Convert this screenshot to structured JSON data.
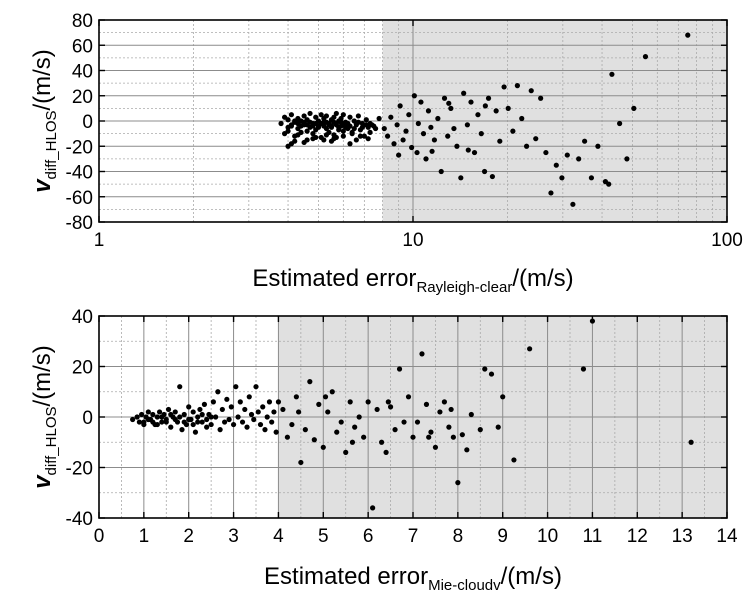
{
  "chart_data": [
    {
      "type": "scatter",
      "xscale": "log",
      "xlim": [
        1,
        100
      ],
      "ylim": [
        -80,
        80
      ],
      "x_ticks": [
        1,
        10,
        100
      ],
      "y_ticks": [
        -80,
        -60,
        -40,
        -20,
        0,
        20,
        40,
        60,
        80
      ],
      "tick_labels_x": [
        "1",
        "10",
        "100"
      ],
      "tick_labels_y": [
        "-80",
        "-60",
        "-40",
        "-20",
        "0",
        "20",
        "40",
        "60",
        "80"
      ],
      "xlabel_main": "Estimated error",
      "xlabel_sub": "Rayleigh-clear",
      "xlabel_unit": "/(m/s)",
      "ylabel_main": "v",
      "ylabel_sub": "diff_HLOS",
      "ylabel_unit": "/(m/s)",
      "shaded_region_x": [
        8,
        100
      ],
      "grid": true,
      "marker_color": "#000000",
      "shade_color": "#e0e0e0",
      "points": [
        [
          3.8,
          -2
        ],
        [
          3.9,
          3
        ],
        [
          4.0,
          -8
        ],
        [
          4.0,
          1
        ],
        [
          4.1,
          -4
        ],
        [
          4.1,
          5
        ],
        [
          4.2,
          -12
        ],
        [
          4.2,
          -1
        ],
        [
          4.3,
          2
        ],
        [
          4.3,
          -6
        ],
        [
          4.4,
          0
        ],
        [
          4.4,
          -9
        ],
        [
          4.5,
          4
        ],
        [
          4.5,
          -3
        ],
        [
          4.6,
          -15
        ],
        [
          4.6,
          1
        ],
        [
          4.7,
          -5
        ],
        [
          4.7,
          6
        ],
        [
          4.8,
          -2
        ],
        [
          4.8,
          -10
        ],
        [
          4.9,
          3
        ],
        [
          4.9,
          -7
        ],
        [
          5.0,
          0
        ],
        [
          5.0,
          -4
        ],
        [
          5.1,
          5
        ],
        [
          5.1,
          -13
        ],
        [
          5.2,
          -1
        ],
        [
          5.2,
          2
        ],
        [
          5.3,
          -6
        ],
        [
          5.3,
          4
        ],
        [
          5.4,
          -3
        ],
        [
          5.4,
          -9
        ],
        [
          5.5,
          1
        ],
        [
          5.5,
          -5
        ],
        [
          5.6,
          3
        ],
        [
          5.6,
          -11
        ],
        [
          5.7,
          -2
        ],
        [
          5.7,
          6
        ],
        [
          5.8,
          -7
        ],
        [
          5.8,
          0
        ],
        [
          5.9,
          -4
        ],
        [
          5.9,
          2
        ],
        [
          6.0,
          -8
        ],
        [
          6.0,
          5
        ],
        [
          6.1,
          -1
        ],
        [
          6.2,
          -6
        ],
        [
          6.3,
          3
        ],
        [
          6.4,
          -10
        ],
        [
          6.5,
          0
        ],
        [
          6.6,
          -3
        ],
        [
          6.7,
          4
        ],
        [
          6.8,
          -7
        ],
        [
          6.9,
          -2
        ],
        [
          7.0,
          -12
        ],
        [
          7.1,
          1
        ],
        [
          7.2,
          -5
        ],
        [
          7.3,
          -9
        ],
        [
          7.4,
          -3
        ],
        [
          7.6,
          -6
        ],
        [
          7.8,
          2
        ],
        [
          4.0,
          -20
        ],
        [
          4.1,
          -18
        ],
        [
          4.2,
          -16
        ],
        [
          4.5,
          -17
        ],
        [
          4.8,
          -14
        ],
        [
          5.2,
          -15
        ],
        [
          5.5,
          -16
        ],
        [
          5.7,
          -13
        ],
        [
          6.3,
          -18
        ],
        [
          6.6,
          -15
        ],
        [
          6.8,
          -12
        ],
        [
          7.2,
          -14
        ],
        [
          3.9,
          -10
        ],
        [
          4.3,
          -11
        ],
        [
          4.6,
          -8
        ],
        [
          4.9,
          -13
        ],
        [
          5.3,
          -11
        ],
        [
          5.6,
          -14
        ],
        [
          6.0,
          -12
        ],
        [
          6.4,
          -9
        ],
        [
          4.0,
          -5
        ],
        [
          4.1,
          -3
        ],
        [
          4.2,
          0
        ],
        [
          4.3,
          -2
        ],
        [
          4.4,
          -4
        ],
        [
          4.5,
          -1
        ],
        [
          4.6,
          -3
        ],
        [
          4.7,
          -1
        ],
        [
          4.8,
          -4
        ],
        [
          4.9,
          -2
        ],
        [
          5.0,
          -5
        ],
        [
          5.1,
          -2
        ],
        [
          5.2,
          -4
        ],
        [
          5.3,
          -1
        ],
        [
          5.4,
          -2
        ],
        [
          5.5,
          -4
        ],
        [
          5.6,
          -1
        ],
        [
          5.7,
          -3
        ],
        [
          5.8,
          -5
        ],
        [
          5.9,
          -1
        ],
        [
          6.0,
          -3
        ],
        [
          6.1,
          -5
        ],
        [
          6.2,
          -2
        ],
        [
          6.3,
          -4
        ],
        [
          6.5,
          -6
        ],
        [
          6.7,
          -1
        ],
        [
          6.9,
          -5
        ],
        [
          7.1,
          -3
        ],
        [
          7.3,
          -2
        ],
        [
          7.5,
          -4
        ],
        [
          8.1,
          -6
        ],
        [
          8.3,
          -12
        ],
        [
          8.5,
          3
        ],
        [
          8.7,
          -18
        ],
        [
          8.9,
          -3
        ],
        [
          9.1,
          12
        ],
        [
          9.3,
          -15
        ],
        [
          9.5,
          -8
        ],
        [
          9.7,
          5
        ],
        [
          9.9,
          -21
        ],
        [
          10.1,
          20
        ],
        [
          10.3,
          -25
        ],
        [
          10.4,
          -2
        ],
        [
          10.6,
          15
        ],
        [
          10.8,
          -10
        ],
        [
          11.0,
          -30
        ],
        [
          11.2,
          8
        ],
        [
          11.4,
          -5
        ],
        [
          11.7,
          -15
        ],
        [
          12.0,
          2
        ],
        [
          12.3,
          -40
        ],
        [
          12.6,
          18
        ],
        [
          12.9,
          -12
        ],
        [
          13.2,
          10
        ],
        [
          13.5,
          -6
        ],
        [
          13.8,
          -20
        ],
        [
          14.2,
          -45
        ],
        [
          14.5,
          22
        ],
        [
          14.9,
          -3
        ],
        [
          15.3,
          15
        ],
        [
          15.7,
          -25
        ],
        [
          16.1,
          5
        ],
        [
          16.5,
          -10
        ],
        [
          16.9,
          -40
        ],
        [
          17.4,
          18
        ],
        [
          17.9,
          -44
        ],
        [
          18.4,
          8
        ],
        [
          18.9,
          -16
        ],
        [
          19.5,
          27
        ],
        [
          20.1,
          10
        ],
        [
          20.8,
          -8
        ],
        [
          21.5,
          28
        ],
        [
          22.2,
          2
        ],
        [
          23.0,
          -20
        ],
        [
          23.8,
          24
        ],
        [
          24.6,
          -14
        ],
        [
          25.5,
          18
        ],
        [
          26.5,
          -25
        ],
        [
          27.5,
          -57
        ],
        [
          28.6,
          -35
        ],
        [
          29.8,
          -45
        ],
        [
          31.0,
          -27
        ],
        [
          32.3,
          -66
        ],
        [
          33.7,
          -30
        ],
        [
          35.2,
          -16
        ],
        [
          37.0,
          -45
        ],
        [
          38.8,
          -20
        ],
        [
          41.0,
          -48
        ],
        [
          43.0,
          37
        ],
        [
          45.5,
          -2
        ],
        [
          48.0,
          -30
        ],
        [
          50.5,
          10
        ],
        [
          55.0,
          51
        ],
        [
          75.0,
          68
        ],
        [
          42.0,
          -50
        ],
        [
          9.0,
          -27
        ],
        [
          11.5,
          -24
        ],
        [
          13.0,
          14
        ],
        [
          15.0,
          -23
        ],
        [
          17.0,
          12
        ]
      ]
    },
    {
      "type": "scatter",
      "xlim": [
        0,
        14
      ],
      "ylim": [
        -40,
        40
      ],
      "x_ticks": [
        0,
        1,
        2,
        3,
        4,
        5,
        6,
        7,
        8,
        9,
        10,
        11,
        12,
        13,
        14
      ],
      "y_ticks": [
        -40,
        -20,
        0,
        20,
        40
      ],
      "tick_labels_x": [
        "0",
        "1",
        "2",
        "3",
        "4",
        "5",
        "6",
        "7",
        "8",
        "9",
        "10",
        "11",
        "12",
        "13",
        "14"
      ],
      "tick_labels_y": [
        "-40",
        "-20",
        "0",
        "20",
        "40"
      ],
      "xlabel_main": "Estimated error",
      "xlabel_sub": "Mie-cloudv",
      "xlabel_unit": "/(m/s)",
      "ylabel_main": "v",
      "ylabel_sub": "diff_HLOS",
      "ylabel_unit": "/(m/s)",
      "shaded_region_x": [
        4,
        14
      ],
      "grid": true,
      "marker_color": "#000000",
      "shade_color": "#e0e0e0",
      "points": [
        [
          0.75,
          -1
        ],
        [
          0.85,
          0
        ],
        [
          0.9,
          -2
        ],
        [
          0.95,
          1
        ],
        [
          1.0,
          -3
        ],
        [
          1.05,
          0
        ],
        [
          1.1,
          2
        ],
        [
          1.15,
          -1
        ],
        [
          1.2,
          1
        ],
        [
          1.25,
          -3
        ],
        [
          1.3,
          0
        ],
        [
          1.35,
          2
        ],
        [
          1.4,
          -2
        ],
        [
          1.45,
          1
        ],
        [
          1.5,
          -1
        ],
        [
          1.55,
          3
        ],
        [
          1.6,
          -4
        ],
        [
          1.65,
          0
        ],
        [
          1.7,
          2
        ],
        [
          1.75,
          -2
        ],
        [
          1.8,
          12
        ],
        [
          1.85,
          -5
        ],
        [
          1.9,
          1
        ],
        [
          1.95,
          -3
        ],
        [
          2.0,
          4
        ],
        [
          2.05,
          -1
        ],
        [
          2.1,
          2
        ],
        [
          2.15,
          -6
        ],
        [
          2.2,
          0
        ],
        [
          2.25,
          3
        ],
        [
          2.3,
          -2
        ],
        [
          2.35,
          5
        ],
        [
          2.4,
          -4
        ],
        [
          2.45,
          1
        ],
        [
          2.5,
          -3
        ],
        [
          2.55,
          6
        ],
        [
          2.6,
          0
        ],
        [
          2.65,
          10
        ],
        [
          2.7,
          -5
        ],
        [
          2.75,
          3
        ],
        [
          2.8,
          -2
        ],
        [
          2.85,
          7
        ],
        [
          2.9,
          -1
        ],
        [
          2.95,
          4
        ],
        [
          3.0,
          -3
        ],
        [
          3.05,
          12
        ],
        [
          3.1,
          0
        ],
        [
          3.15,
          6
        ],
        [
          3.2,
          -2
        ],
        [
          3.25,
          3
        ],
        [
          3.3,
          -4
        ],
        [
          3.35,
          8
        ],
        [
          3.4,
          1
        ],
        [
          3.45,
          -1
        ],
        [
          3.5,
          12
        ],
        [
          3.55,
          2
        ],
        [
          3.6,
          -3
        ],
        [
          3.65,
          4
        ],
        [
          3.7,
          -5
        ],
        [
          3.75,
          0
        ],
        [
          3.8,
          6
        ],
        [
          3.85,
          -2
        ],
        [
          3.9,
          2
        ],
        [
          3.95,
          -6
        ],
        [
          1.0,
          -2
        ],
        [
          1.1,
          -1
        ],
        [
          1.2,
          -2
        ],
        [
          1.3,
          -3
        ],
        [
          1.4,
          0
        ],
        [
          1.5,
          -2
        ],
        [
          1.6,
          1
        ],
        [
          1.7,
          -1
        ],
        [
          1.8,
          0
        ],
        [
          1.9,
          -2
        ],
        [
          2.0,
          -1
        ],
        [
          2.1,
          -3
        ],
        [
          2.2,
          -2
        ],
        [
          2.3,
          1
        ],
        [
          2.4,
          -1
        ],
        [
          2.5,
          0
        ],
        [
          4.1,
          3
        ],
        [
          4.2,
          -8
        ],
        [
          4.3,
          -3
        ],
        [
          4.4,
          8
        ],
        [
          4.5,
          -18
        ],
        [
          4.6,
          -5
        ],
        [
          4.7,
          14
        ],
        [
          4.8,
          -9
        ],
        [
          4.9,
          5
        ],
        [
          5.0,
          -12
        ],
        [
          5.1,
          2
        ],
        [
          5.2,
          10
        ],
        [
          5.3,
          -6
        ],
        [
          5.4,
          -2
        ],
        [
          5.5,
          -14
        ],
        [
          5.6,
          6
        ],
        [
          5.7,
          -4
        ],
        [
          5.8,
          0
        ],
        [
          5.9,
          -8
        ],
        [
          6.0,
          6
        ],
        [
          6.1,
          -36
        ],
        [
          6.2,
          3
        ],
        [
          6.3,
          -10
        ],
        [
          6.4,
          -14
        ],
        [
          6.5,
          4
        ],
        [
          6.6,
          -5
        ],
        [
          6.7,
          19
        ],
        [
          6.8,
          -2
        ],
        [
          6.9,
          8
        ],
        [
          7.0,
          -8
        ],
        [
          7.1,
          -2
        ],
        [
          7.2,
          25
        ],
        [
          7.3,
          5
        ],
        [
          7.4,
          -6
        ],
        [
          7.5,
          -12
        ],
        [
          7.6,
          2
        ],
        [
          7.7,
          6
        ],
        [
          7.8,
          -4
        ],
        [
          7.9,
          -8
        ],
        [
          8.0,
          -26
        ],
        [
          8.1,
          -7
        ],
        [
          8.2,
          -13
        ],
        [
          8.3,
          1
        ],
        [
          8.5,
          -5
        ],
        [
          8.6,
          19
        ],
        [
          8.75,
          17
        ],
        [
          8.9,
          -4
        ],
        [
          9.0,
          8
        ],
        [
          9.25,
          -17
        ],
        [
          9.6,
          27
        ],
        [
          10.8,
          19
        ],
        [
          11.0,
          38
        ],
        [
          13.2,
          -10
        ],
        [
          4.0,
          6
        ],
        [
          4.45,
          2
        ],
        [
          5.05,
          8
        ],
        [
          5.65,
          -10
        ],
        [
          6.45,
          6
        ],
        [
          7.35,
          -8
        ],
        [
          7.85,
          3
        ]
      ]
    }
  ]
}
